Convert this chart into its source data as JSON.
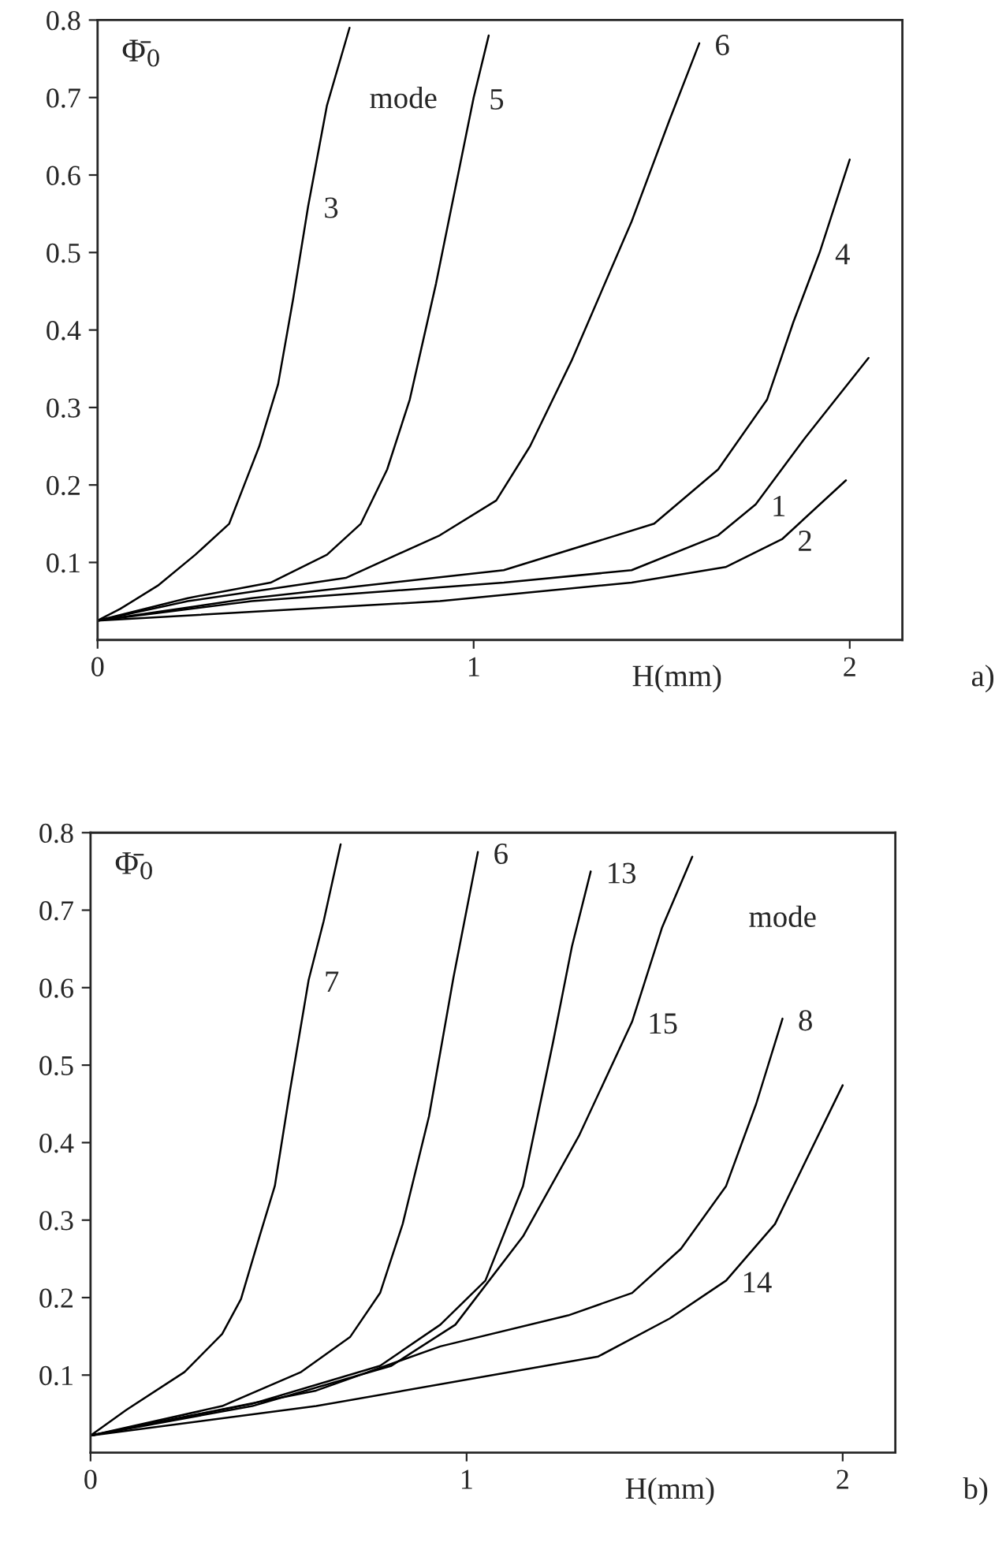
{
  "chart_data": [
    {
      "type": "line",
      "xlabel": "H(mm)",
      "ylabel": "Φ̄$_{0}$",
      "xlim": [
        0,
        2.14
      ],
      "ylim": [
        0,
        0.8
      ],
      "xticks": [
        0,
        1,
        2
      ],
      "yticks": [
        0.1,
        0.2,
        0.3,
        0.4,
        0.5,
        0.6,
        0.7,
        0.8
      ],
      "grid": false,
      "legend": false,
      "marker": "none",
      "line_style": "solid",
      "series": [
        {
          "name": "3",
          "color": "#000000",
          "x": [
            0,
            0.06,
            0.16,
            0.26,
            0.35,
            0.39,
            0.43,
            0.48,
            0.52,
            0.56,
            0.61,
            0.67
          ],
          "values": [
            0.025,
            0.04,
            0.07,
            0.11,
            0.15,
            0.2,
            0.25,
            0.33,
            0.44,
            0.56,
            0.69,
            0.79
          ]
        },
        {
          "name": "5",
          "color": "#000000",
          "x": [
            0,
            0.24,
            0.46,
            0.61,
            0.7,
            0.77,
            0.83,
            0.9,
            0.95,
            1.0,
            1.04
          ],
          "values": [
            0.025,
            0.054,
            0.074,
            0.11,
            0.15,
            0.22,
            0.31,
            0.46,
            0.58,
            0.7,
            0.78
          ]
        },
        {
          "name": "6",
          "color": "#000000",
          "x": [
            0,
            0.24,
            0.66,
            0.91,
            1.06,
            1.15,
            1.26,
            1.42,
            1.52,
            1.6
          ],
          "values": [
            0.025,
            0.05,
            0.08,
            0.135,
            0.18,
            0.25,
            0.36,
            0.54,
            0.67,
            0.77
          ]
        },
        {
          "name": "4",
          "color": "#000000",
          "x": [
            0,
            0.41,
            1.08,
            1.48,
            1.65,
            1.78,
            1.85,
            1.92,
            2.0
          ],
          "values": [
            0.025,
            0.054,
            0.09,
            0.15,
            0.22,
            0.31,
            0.41,
            0.5,
            0.62
          ]
        },
        {
          "name": "1",
          "color": "#000000",
          "x": [
            0,
            0.41,
            1.08,
            1.42,
            1.65,
            1.75,
            1.88,
            2.05
          ],
          "values": [
            0.025,
            0.05,
            0.074,
            0.09,
            0.135,
            0.175,
            0.26,
            0.364
          ]
        },
        {
          "name": "2",
          "color": "#000000",
          "x": [
            0,
            0.91,
            1.42,
            1.67,
            1.82,
            1.99
          ],
          "values": [
            0.025,
            0.05,
            0.074,
            0.094,
            0.13,
            0.206
          ]
        }
      ],
      "annotations": [
        "mode",
        "a)"
      ]
    },
    {
      "type": "line",
      "xlabel": "H(mm)",
      "ylabel": "Φ̄$_{0}$",
      "xlim": [
        0,
        2.14
      ],
      "ylim": [
        0,
        0.8
      ],
      "xticks": [
        0,
        1,
        2
      ],
      "yticks": [
        0.1,
        0.2,
        0.3,
        0.4,
        0.5,
        0.6,
        0.7,
        0.8
      ],
      "grid": false,
      "legend": false,
      "marker": "none",
      "line_style": "solid",
      "series": [
        {
          "name": "7",
          "color": "#000000",
          "x": [
            0,
            0.095,
            0.25,
            0.35,
            0.4,
            0.45,
            0.49,
            0.53,
            0.58,
            0.62,
            0.665
          ],
          "values": [
            0.022,
            0.055,
            0.104,
            0.153,
            0.198,
            0.28,
            0.344,
            0.466,
            0.61,
            0.686,
            0.785
          ]
        },
        {
          "name": "6",
          "color": "#000000",
          "x": [
            0,
            0.35,
            0.56,
            0.69,
            0.77,
            0.83,
            0.9,
            0.965,
            1.03
          ],
          "values": [
            0.022,
            0.06,
            0.104,
            0.149,
            0.206,
            0.295,
            0.434,
            0.613,
            0.775
          ]
        },
        {
          "name": "13",
          "color": "#000000",
          "x": [
            0,
            0.43,
            0.77,
            0.93,
            1.05,
            1.15,
            1.23,
            1.28,
            1.33
          ],
          "values": [
            0.022,
            0.063,
            0.112,
            0.165,
            0.222,
            0.344,
            0.53,
            0.653,
            0.75
          ]
        },
        {
          "name": "15",
          "color": "#000000",
          "x": [
            0,
            0.43,
            0.8,
            0.97,
            1.15,
            1.3,
            1.44,
            1.52,
            1.6
          ],
          "values": [
            0.022,
            0.06,
            0.112,
            0.165,
            0.279,
            0.41,
            0.556,
            0.678,
            0.769
          ]
        },
        {
          "name": "8",
          "color": "#000000",
          "x": [
            0,
            0.6,
            0.93,
            1.27,
            1.44,
            1.57,
            1.69,
            1.77,
            1.84
          ],
          "values": [
            0.022,
            0.08,
            0.137,
            0.177,
            0.206,
            0.263,
            0.344,
            0.45,
            0.56
          ]
        },
        {
          "name": "14",
          "color": "#000000",
          "x": [
            0,
            0.6,
            1.35,
            1.54,
            1.69,
            1.82,
            2.0
          ],
          "values": [
            0.022,
            0.06,
            0.124,
            0.173,
            0.222,
            0.295,
            0.474
          ]
        }
      ],
      "annotations": [
        "mode",
        "b)"
      ]
    }
  ]
}
